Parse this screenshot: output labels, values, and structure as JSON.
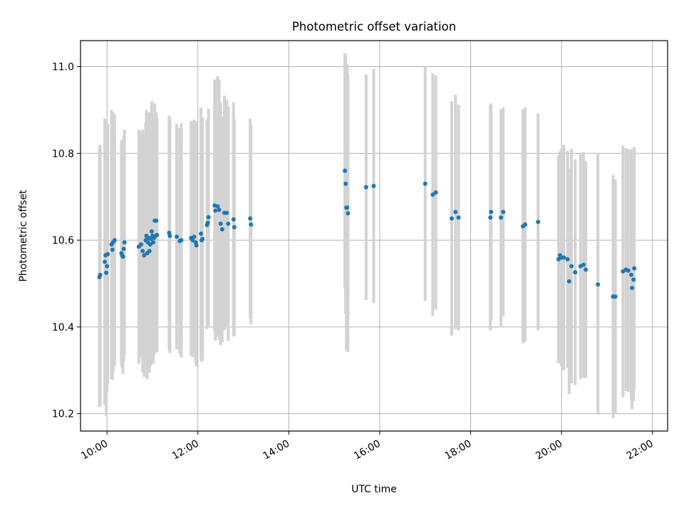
{
  "chart_data": {
    "type": "scatter",
    "title": "Photometric offset variation",
    "xlabel": "UTC time",
    "ylabel": "Photometric offset",
    "x_ticks": [
      "10:00",
      "12:00",
      "14:00",
      "16:00",
      "18:00",
      "20:00",
      "22:00"
    ],
    "y_ticks": [
      "10.2",
      "10.4",
      "10.6",
      "10.8",
      "11.0"
    ],
    "xlim": [
      "09:25",
      "22:20"
    ],
    "ylim": [
      10.16,
      11.06
    ],
    "grid": true,
    "legend": "none",
    "colors": {
      "points": "#1f77b4",
      "errorbars": "#d3d3d3",
      "grid": "#b0b0b0"
    },
    "series": [
      {
        "x": [
          "09:50",
          "09:51",
          "09:57",
          "09:58",
          "09:59",
          "10:00",
          "10:01",
          "10:06",
          "10:07",
          "10:08",
          "10:10",
          "10:19",
          "10:20",
          "10:21",
          "10:22",
          "10:23",
          "10:42",
          "10:45",
          "10:47",
          "10:49",
          "10:51",
          "10:52",
          "10:53",
          "10:54",
          "10:55",
          "10:56",
          "10:57",
          "10:58",
          "10:59",
          "11:00",
          "11:01",
          "11:02",
          "11:03",
          "11:04",
          "11:05",
          "11:06",
          "11:22",
          "11:23",
          "11:32",
          "11:36",
          "11:38",
          "11:51",
          "11:53",
          "11:55",
          "11:57",
          "11:58",
          "12:04",
          "12:05",
          "12:06",
          "12:12",
          "12:13",
          "12:14",
          "12:22",
          "12:23",
          "12:26",
          "12:28",
          "12:30",
          "12:32",
          "12:35",
          "12:38",
          "12:40",
          "12:47",
          "12:48",
          "13:09",
          "13:10",
          "15:14",
          "15:15",
          "15:16",
          "15:17",
          "15:18",
          "15:42",
          "15:52",
          "17:00",
          "17:10",
          "17:14",
          "17:35",
          "17:40",
          "17:44",
          "18:26",
          "18:27",
          "18:40",
          "18:43",
          "19:09",
          "19:12",
          "19:29",
          "19:56",
          "19:58",
          "20:00",
          "20:03",
          "20:08",
          "20:10",
          "20:13",
          "20:18",
          "20:25",
          "20:29",
          "20:32",
          "20:48",
          "21:08",
          "21:11",
          "21:21",
          "21:25",
          "21:28",
          "21:32",
          "21:33",
          "21:35",
          "21:36"
        ],
        "y": [
          10.515,
          10.52,
          10.55,
          10.565,
          10.525,
          10.54,
          10.568,
          10.59,
          10.578,
          10.595,
          10.6,
          10.57,
          10.565,
          10.562,
          10.58,
          10.595,
          10.585,
          10.59,
          10.575,
          10.565,
          10.6,
          10.61,
          10.57,
          10.595,
          10.605,
          10.575,
          10.59,
          10.603,
          10.62,
          10.61,
          10.595,
          10.605,
          10.645,
          10.61,
          10.645,
          10.612,
          10.617,
          10.61,
          10.608,
          10.598,
          10.6,
          10.605,
          10.6,
          10.608,
          10.595,
          10.588,
          10.615,
          10.6,
          10.603,
          10.635,
          10.64,
          10.653,
          10.68,
          10.668,
          10.678,
          10.67,
          10.638,
          10.625,
          10.663,
          10.663,
          10.638,
          10.648,
          10.63,
          10.65,
          10.636,
          10.76,
          10.73,
          10.675,
          10.675,
          10.662,
          10.722,
          10.725,
          10.73,
          10.705,
          10.71,
          10.65,
          10.665,
          10.652,
          10.652,
          10.665,
          10.652,
          10.665,
          10.632,
          10.636,
          10.642,
          10.556,
          10.565,
          10.56,
          10.56,
          10.556,
          10.505,
          10.54,
          10.526,
          10.54,
          10.543,
          10.532,
          10.498,
          10.47,
          10.47,
          10.528,
          10.532,
          10.53,
          10.52,
          10.49,
          10.509,
          10.535
        ],
        "err": [
          0.3,
          0.3,
          0.33,
          0.31,
          0.33,
          0.29,
          0.3,
          0.31,
          0.3,
          0.3,
          0.29,
          0.26,
          0.26,
          0.27,
          0.26,
          0.26,
          0.27,
          0.26,
          0.28,
          0.28,
          0.27,
          0.29,
          0.29,
          0.3,
          0.29,
          0.28,
          0.28,
          0.29,
          0.3,
          0.27,
          0.28,
          0.27,
          0.27,
          0.27,
          0.25,
          0.27,
          0.27,
          0.27,
          0.26,
          0.26,
          0.27,
          0.27,
          0.27,
          0.27,
          0.28,
          0.28,
          0.29,
          0.28,
          0.28,
          0.24,
          0.24,
          0.25,
          0.29,
          0.3,
          0.3,
          0.3,
          0.28,
          0.26,
          0.27,
          0.26,
          0.27,
          0.27,
          0.25,
          0.23,
          0.23,
          0.27,
          0.3,
          0.33,
          0.33,
          0.32,
          0.26,
          0.27,
          0.27,
          0.28,
          0.27,
          0.27,
          0.27,
          0.26,
          0.26,
          0.25,
          0.25,
          0.24,
          0.27,
          0.27,
          0.25,
          0.24,
          0.24,
          0.25,
          0.26,
          0.25,
          0.26,
          0.27,
          0.26,
          0.26,
          0.26,
          0.25,
          0.3,
          0.28,
          0.27,
          0.29,
          0.28,
          0.28,
          0.29,
          0.28,
          0.28,
          0.28
        ]
      }
    ]
  }
}
